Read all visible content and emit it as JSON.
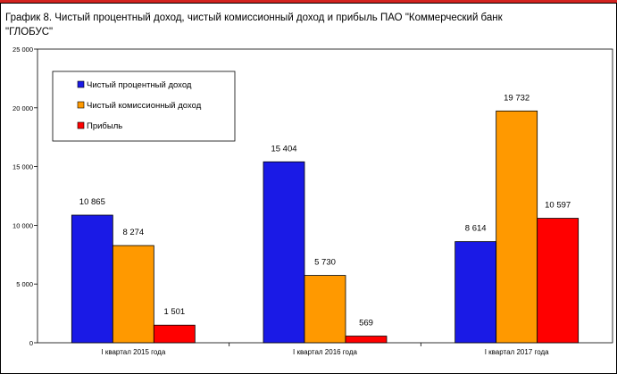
{
  "title": "График 8. Чистый процентный доход, чистый комиссионный доход и прибыль ПАО \"Коммерческий банк \"ГЛОБУС\"",
  "chart_data": {
    "type": "bar",
    "title": "График 8. Чистый процентный доход, чистый комиссионный доход и прибыль ПАО \"Коммерческий банк \"ГЛОБУС\"",
    "categories": [
      "I квартал 2015 года",
      "I квартал 2016 года",
      "I квартал 2017 года"
    ],
    "series": [
      {
        "name": "Чистый процентный доход",
        "color": "#1a1ae6",
        "values": [
          10865,
          15404,
          8614
        ],
        "labels": [
          "10 865",
          "15 404",
          "8 614"
        ]
      },
      {
        "name": "Чистый комиссионный доход",
        "color": "#ff9900",
        "values": [
          8274,
          5730,
          19732
        ],
        "labels": [
          "8 274",
          "5 730",
          "19 732"
        ]
      },
      {
        "name": "Прибыль",
        "color": "#ff0000",
        "values": [
          1501,
          569,
          10597
        ],
        "labels": [
          "1 501",
          "569",
          "10 597"
        ]
      }
    ],
    "ylim": [
      0,
      25000
    ],
    "yticks": [
      0,
      5000,
      10000,
      15000,
      20000,
      25000
    ],
    "ytick_labels": [
      "0",
      "5 000",
      "10 000",
      "15 000",
      "20 000",
      "25 000"
    ],
    "grid": false,
    "legend_position": "top-left"
  }
}
